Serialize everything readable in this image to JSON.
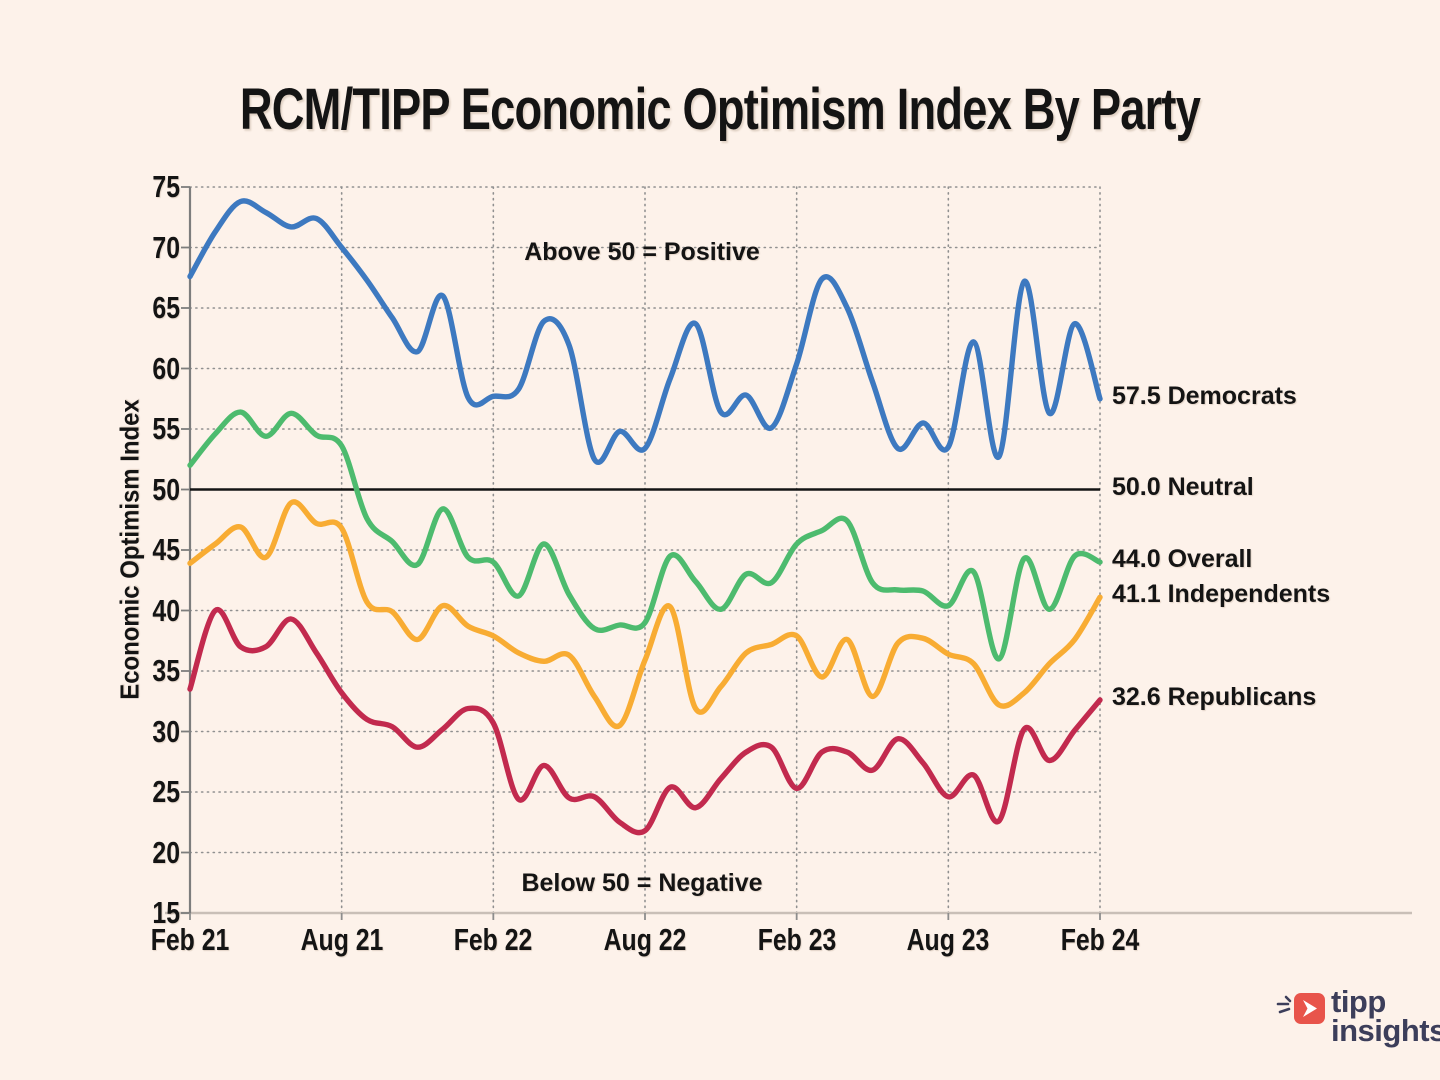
{
  "title": "RCM/TIPP Economic Optimism Index By Party",
  "annotations": {
    "above": "Above 50 = Positive",
    "below": "Below 50 = Negative"
  },
  "y_axis": {
    "label": "Economic Optimism Index",
    "ticks": [
      "75",
      "70",
      "65",
      "60",
      "55",
      "50",
      "45",
      "40",
      "35",
      "30",
      "25",
      "20",
      "15"
    ]
  },
  "x_axis": {
    "ticks": [
      "Feb 21",
      "Aug 21",
      "Feb 22",
      "Aug 22",
      "Feb 23",
      "Aug 23",
      "Feb 24"
    ]
  },
  "end_labels": [
    {
      "label": "57.5 Democrats",
      "value": 57.5
    },
    {
      "label": "50.0 Neutral",
      "value": 50.0
    },
    {
      "label": "44.0 Overall",
      "value": 44.0
    },
    {
      "label": "41.1 Independents",
      "value": 41.1
    },
    {
      "label": "32.6 Republicans",
      "value": 32.6
    }
  ],
  "colors": {
    "background": "#fdf2ea",
    "democrats": "#3d79c0",
    "overall": "#4dbb6e",
    "independents": "#f8ac33",
    "republicans": "#c22a4e",
    "neutral_line": "#141414",
    "grid": "#909090"
  },
  "logo": {
    "line1": "tipp",
    "line2": "insights"
  },
  "chart_data": {
    "type": "line",
    "title": "RCM/TIPP Economic Optimism Index By Party",
    "ylabel": "Economic Optimism Index",
    "ylim": [
      15,
      75
    ],
    "grid": "dotted",
    "neutral_reference": 50.0,
    "x_labels": [
      "Feb 21",
      "Mar 21",
      "Apr 21",
      "May 21",
      "Jun 21",
      "Jul 21",
      "Aug 21",
      "Sep 21",
      "Oct 21",
      "Nov 21",
      "Dec 21",
      "Jan 22",
      "Feb 22",
      "Mar 22",
      "Apr 22",
      "May 22",
      "Jun 22",
      "Jul 22",
      "Aug 22",
      "Sep 22",
      "Oct 22",
      "Nov 22",
      "Dec 22",
      "Jan 23",
      "Feb 23",
      "Mar 23",
      "Apr 23",
      "May 23",
      "Jun 23",
      "Jul 23",
      "Aug 23",
      "Sep 23",
      "Oct 23",
      "Nov 23",
      "Dec 23",
      "Jan 24",
      "Feb 24"
    ],
    "x_shown_ticks": [
      "Feb 21",
      "Aug 21",
      "Feb 22",
      "Aug 22",
      "Feb 23",
      "Aug 23",
      "Feb 24"
    ],
    "series": [
      {
        "name": "Overall",
        "color": "#4dbb6e",
        "final_value": 44.0,
        "values": [
          52.0,
          54.6,
          56.4,
          54.4,
          56.3,
          54.5,
          53.6,
          47.6,
          45.7,
          43.8,
          48.4,
          44.4,
          44.0,
          41.2,
          45.5,
          41.3,
          38.5,
          38.8,
          39.0,
          44.5,
          42.4,
          40.1,
          43.0,
          42.3,
          45.5,
          46.6,
          47.4,
          42.3,
          41.7,
          41.6,
          40.4,
          43.2,
          36.0,
          44.3,
          40.1,
          44.5,
          44.0
        ]
      },
      {
        "name": "Independents",
        "color": "#f8ac33",
        "final_value": 41.1,
        "values": [
          43.9,
          45.5,
          46.9,
          44.4,
          48.9,
          47.2,
          46.8,
          40.7,
          39.9,
          37.6,
          40.4,
          38.7,
          37.9,
          36.5,
          35.8,
          36.3,
          32.9,
          30.5,
          35.9,
          40.3,
          31.9,
          33.7,
          36.5,
          37.2,
          37.9,
          34.5,
          37.6,
          32.9,
          37.3,
          37.7,
          36.4,
          35.6,
          32.2,
          33.2,
          35.6,
          37.6,
          41.1
        ]
      },
      {
        "name": "Republicans",
        "color": "#c22a4e",
        "final_value": 32.6,
        "values": [
          33.5,
          40.0,
          37.0,
          37.0,
          39.3,
          36.5,
          33.2,
          31.0,
          30.4,
          28.7,
          30.2,
          31.9,
          30.7,
          24.4,
          27.2,
          24.5,
          24.6,
          22.5,
          21.8,
          25.4,
          23.7,
          26.1,
          28.3,
          28.7,
          25.3,
          28.3,
          28.3,
          26.8,
          29.4,
          27.4,
          24.6,
          26.4,
          22.6,
          30.2,
          27.6,
          30.1,
          32.6
        ]
      },
      {
        "name": "Democrats",
        "color": "#3d79c0",
        "final_value": 57.5,
        "values": [
          67.6,
          71.3,
          73.8,
          72.9,
          71.7,
          72.4,
          70.0,
          67.3,
          64.2,
          61.4,
          66.0,
          57.6,
          57.7,
          58.3,
          63.9,
          61.9,
          52.5,
          54.8,
          53.4,
          59.2,
          63.7,
          56.4,
          57.8,
          55.1,
          60.4,
          67.4,
          65.0,
          58.9,
          53.4,
          55.5,
          53.5,
          62.2,
          52.7,
          67.2,
          56.3,
          63.7,
          57.5
        ]
      }
    ]
  }
}
